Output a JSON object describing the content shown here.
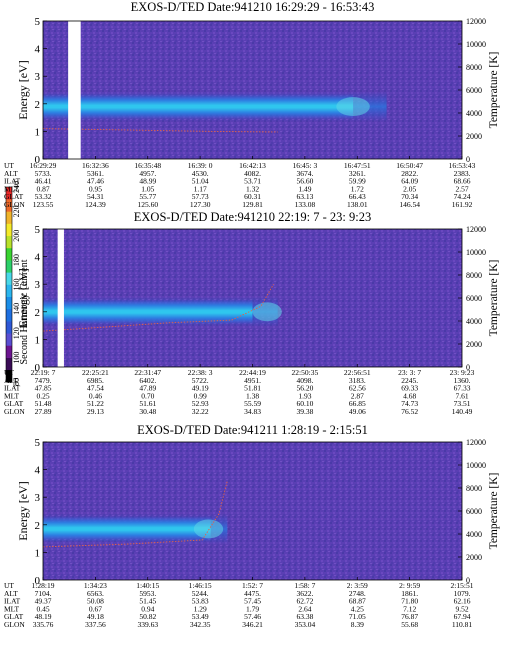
{
  "colorbar": {
    "label": "Second Harmonic Current",
    "ticks": [
      "80",
      "100",
      "120",
      "140",
      "160",
      "180",
      "200",
      "220",
      "240"
    ],
    "colors": [
      "#000000",
      "#3a0b55",
      "#6c1490",
      "#5a4fd2",
      "#2f58d6",
      "#1e6fe0",
      "#1b8ee8",
      "#2bb6ee",
      "#49d8e8",
      "#2cd06a",
      "#39d430",
      "#b8e12a",
      "#f4ea2a",
      "#f0b42b",
      "#ee6a2a",
      "#ea2a2a"
    ]
  },
  "chart_data": [
    {
      "type": "heatmap",
      "title": "EXOS-D/TED",
      "date": "Date:941210",
      "time_range": "16:29:29 - 16:53:43",
      "ylabel": "Energy [eV]",
      "y2label": "Temperature [K]",
      "ylim": [
        0,
        5
      ],
      "yticks": [
        "0",
        "1",
        "2",
        "3",
        "4",
        "5"
      ],
      "y2lim": [
        0,
        12000
      ],
      "y2ticks": [
        "0",
        "2000",
        "4000",
        "6000",
        "8000",
        "10000",
        "12000"
      ],
      "gap": [
        0.06,
        0.09
      ],
      "band": {
        "center": 1.9,
        "ext_start": 0.0,
        "ext_end": 0.74,
        "tail_end": 0.82,
        "trail_start": 0.7,
        "trail_end": 0.78
      },
      "temp_trace": [
        [
          0.0,
          1.1
        ],
        [
          0.2,
          1.05
        ],
        [
          0.4,
          1.0
        ],
        [
          0.56,
          0.98
        ]
      ],
      "row_labels": [
        "UT",
        "ALT",
        "ILAT",
        "MLT",
        "GLAT",
        "GLON"
      ],
      "ticks": [
        [
          "16:29:29",
          "5733.",
          "46.41",
          "0.87",
          "53.32",
          "123.55"
        ],
        [
          "16:32:36",
          "5361.",
          "47.46",
          "0.95",
          "54.31",
          "124.39"
        ],
        [
          "16:35:48",
          "4957.",
          "48.99",
          "1.05",
          "55.77",
          "125.60"
        ],
        [
          "16:39: 0",
          "4530.",
          "51.04",
          "1.17",
          "57.73",
          "127.30"
        ],
        [
          "16:42:13",
          "4082.",
          "53.71",
          "1.32",
          "60.31",
          "129.81"
        ],
        [
          "16:45: 3",
          "3674.",
          "56.60",
          "1.49",
          "63.13",
          "133.08"
        ],
        [
          "16:47:51",
          "3261.",
          "59.99",
          "1.72",
          "66.43",
          "138.01"
        ],
        [
          "16:50:47",
          "2822.",
          "64.09",
          "2.05",
          "70.34",
          "146.54"
        ],
        [
          "16:53:43",
          "2383.",
          "68.66",
          "2.57",
          "74.24",
          "161.92"
        ]
      ]
    },
    {
      "type": "heatmap",
      "title": "EXOS-D/TED",
      "date": "Date:941210",
      "time_range": "22:19: 7 - 23: 9:23",
      "ylabel": "Energy [eV]",
      "y2label": "Temperature [K]",
      "ylim": [
        0,
        5
      ],
      "yticks": [
        "0",
        "1",
        "2",
        "3",
        "4",
        "5"
      ],
      "y2lim": [
        0,
        12000
      ],
      "y2ticks": [
        "0",
        "2000",
        "4000",
        "6000",
        "8000",
        "10000",
        "12000"
      ],
      "gap": [
        0.035,
        0.05
      ],
      "band": {
        "center": 2.0,
        "ext_start": 0.0,
        "ext_end": 0.5,
        "tail_end": 0.56,
        "trail_start": 0.5,
        "trail_end": 0.57
      },
      "temp_trace": [
        [
          0.0,
          1.3
        ],
        [
          0.15,
          1.45
        ],
        [
          0.3,
          1.6
        ],
        [
          0.45,
          1.7
        ],
        [
          0.52,
          2.2
        ],
        [
          0.55,
          3.0
        ]
      ],
      "row_labels": [
        "UT",
        "ALT",
        "ILAT",
        "MLT",
        "GLAT",
        "GLON"
      ],
      "ticks": [
        [
          "22:19: 7",
          "7479.",
          "47.85",
          "0.25",
          "51.48",
          "27.89"
        ],
        [
          "22:25:21",
          "6985.",
          "47.54",
          "0.46",
          "51.22",
          "29.13"
        ],
        [
          "22:31:47",
          "6402.",
          "47.89",
          "0.70",
          "51.61",
          "30.48"
        ],
        [
          "22:38: 3",
          "5722.",
          "49.19",
          "0.99",
          "52.93",
          "32.22"
        ],
        [
          "22:44:19",
          "4951.",
          "51.81",
          "1.38",
          "55.59",
          "34.83"
        ],
        [
          "22:50:35",
          "4098.",
          "56.20",
          "1.93",
          "60.10",
          "39.38"
        ],
        [
          "22:56:51",
          "3183.",
          "62.56",
          "2.87",
          "66.85",
          "49.06"
        ],
        [
          "23: 3: 7",
          "2245.",
          "69.33",
          "4.68",
          "74.73",
          "76.52"
        ],
        [
          "23: 9:23",
          "1360.",
          "67.33",
          "7.61",
          "73.51",
          "140.49"
        ]
      ]
    },
    {
      "type": "heatmap",
      "title": "EXOS-D/TED",
      "date": "Date:941211",
      "time_range": "1:28:19 - 2:15:51",
      "ylabel": "Energy [eV]",
      "y2label": "Temperature [K]",
      "ylim": [
        0,
        5
      ],
      "yticks": [
        "0",
        "1",
        "2",
        "3",
        "4",
        "5"
      ],
      "y2lim": [
        0,
        12000
      ],
      "y2ticks": [
        "0",
        "2000",
        "4000",
        "6000",
        "8000",
        "10000",
        "12000"
      ],
      "gap": null,
      "band": {
        "center": 1.85,
        "ext_start": 0.0,
        "ext_end": 0.4,
        "tail_end": 0.44,
        "trail_start": 0.36,
        "trail_end": 0.43
      },
      "temp_trace": [
        [
          0.0,
          1.2
        ],
        [
          0.2,
          1.3
        ],
        [
          0.38,
          1.45
        ],
        [
          0.42,
          2.4
        ],
        [
          0.44,
          3.6
        ]
      ],
      "row_labels": [
        "UT",
        "ALT",
        "ILAT",
        "MLT",
        "GLAT",
        "GLON"
      ],
      "ticks": [
        [
          "1:28:19",
          "7104.",
          "49.37",
          "0.45",
          "48.19",
          "335.76"
        ],
        [
          "1:34:23",
          "6563.",
          "50.08",
          "0.67",
          "49.18",
          "337.56"
        ],
        [
          "1:40:15",
          "5953.",
          "51.45",
          "0.94",
          "50.82",
          "339.63"
        ],
        [
          "1:46:15",
          "5244.",
          "53.83",
          "1.29",
          "53.49",
          "342.35"
        ],
        [
          "1:52: 7",
          "4475.",
          "57.45",
          "1.79",
          "57.46",
          "346.21"
        ],
        [
          "1:58: 7",
          "3622.",
          "62.72",
          "2.64",
          "63.38",
          "353.04"
        ],
        [
          "2: 3:59",
          "2748.",
          "68.87",
          "4.25",
          "71.05",
          "8.39"
        ],
        [
          "2: 9:59",
          "1861.",
          "71.80",
          "7.12",
          "76.87",
          "55.68"
        ],
        [
          "2:15:51",
          "1079.",
          "62.16",
          "9.52",
          "67.94",
          "110.81"
        ]
      ]
    }
  ]
}
